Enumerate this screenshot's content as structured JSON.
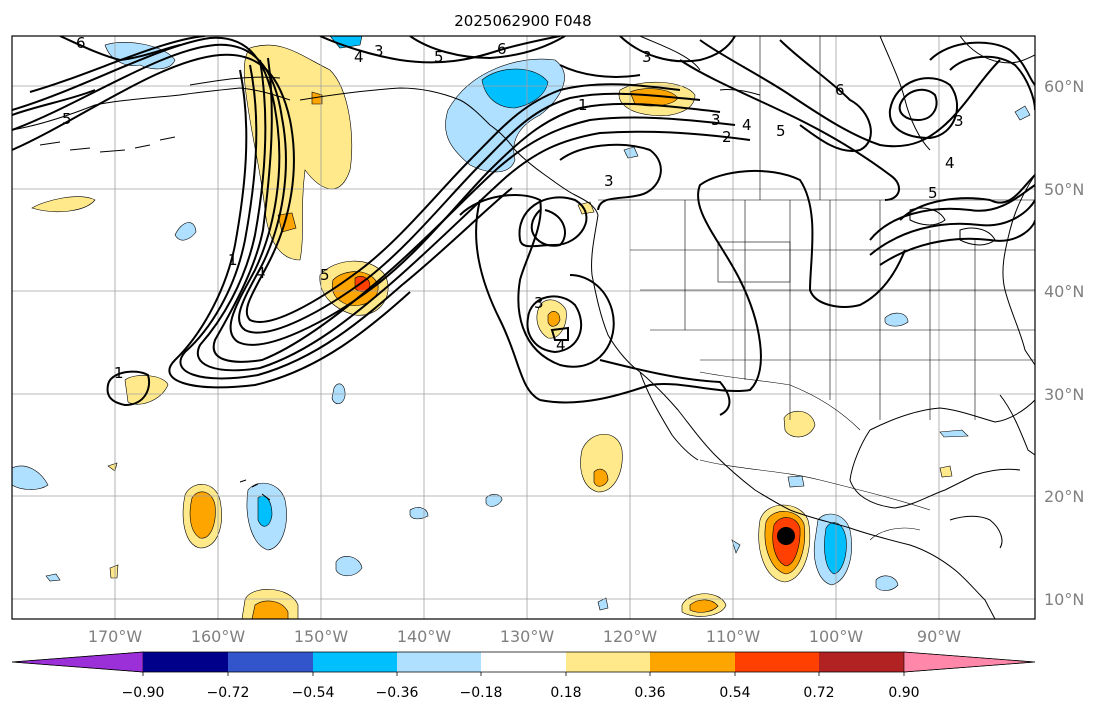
{
  "title": "2025062900 F048",
  "lat_labels": [
    "60°N",
    "50°N",
    "40°N",
    "30°N",
    "20°N",
    "10°N"
  ],
  "lon_labels": [
    "170°W",
    "160°W",
    "150°W",
    "140°W",
    "130°W",
    "120°W",
    "110°W",
    "100°W",
    "90°W"
  ],
  "colorbar": {
    "ticks": [
      "−0.90",
      "−0.72",
      "−0.54",
      "−0.36",
      "−0.18",
      "0.18",
      "0.36",
      "0.54",
      "0.72",
      "0.90"
    ],
    "colors": [
      "#9b30d9",
      "#00008b",
      "#3355cc",
      "#00bfff",
      "#b0e0ff",
      "#ffffff",
      "#ffe98a",
      "#ffa500",
      "#ff4000",
      "#b22222",
      "#ff88aa"
    ]
  },
  "contour_labels": [
    "6",
    "3",
    "4",
    "5",
    "6",
    "3",
    "5",
    "1",
    "3",
    "4",
    "5",
    "2",
    "6",
    "3",
    "4",
    "5",
    "1",
    "3",
    "4",
    "5",
    "3",
    "4",
    "1"
  ],
  "marker": {
    "name": "storm center",
    "lon": -104.5,
    "lat": 16.1
  },
  "colors": {
    "contour": "#000000",
    "grid": "#a0a0a0",
    "label_gray": "#808080"
  }
}
